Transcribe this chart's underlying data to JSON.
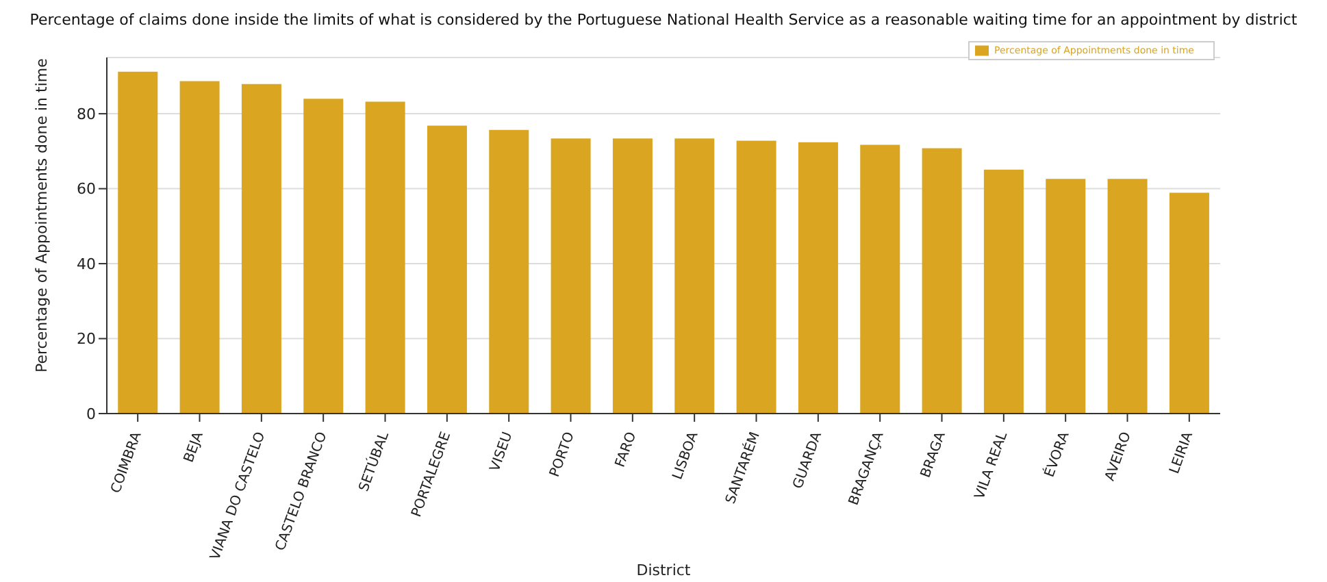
{
  "chart_data": {
    "type": "bar",
    "title": "Percentage of claims done inside the limits of what is considered by the Portuguese National Health Service as a reasonable waiting time for an appointment by district",
    "xlabel": "District",
    "ylabel": "Percentage of Appointments done in time",
    "categories": [
      "COIMBRA",
      "BEJA",
      "VIANA DO CASTELO",
      "CASTELO BRANCO",
      "SETÚBAL",
      "PORTALEGRE",
      "VISEU",
      "PORTO",
      "FARO",
      "LISBOA",
      "SANTARÉM",
      "GUARDA",
      "BRAGANÇA",
      "BRAGA",
      "VILA REAL",
      "ÉVORA",
      "AVEIRO",
      "LEIRIA"
    ],
    "series": [
      {
        "name": "Percentage of Appointments done in time",
        "color": "#daa520",
        "values": [
          91.2,
          88.7,
          87.9,
          84.0,
          83.2,
          76.8,
          75.7,
          73.4,
          73.4,
          73.4,
          72.8,
          72.4,
          71.7,
          70.8,
          65.1,
          62.6,
          62.6,
          58.9
        ]
      }
    ],
    "ylim": [
      0,
      95
    ],
    "yticks": [
      0,
      20,
      40,
      60,
      80
    ],
    "grid": "y",
    "legend": "top right"
  }
}
